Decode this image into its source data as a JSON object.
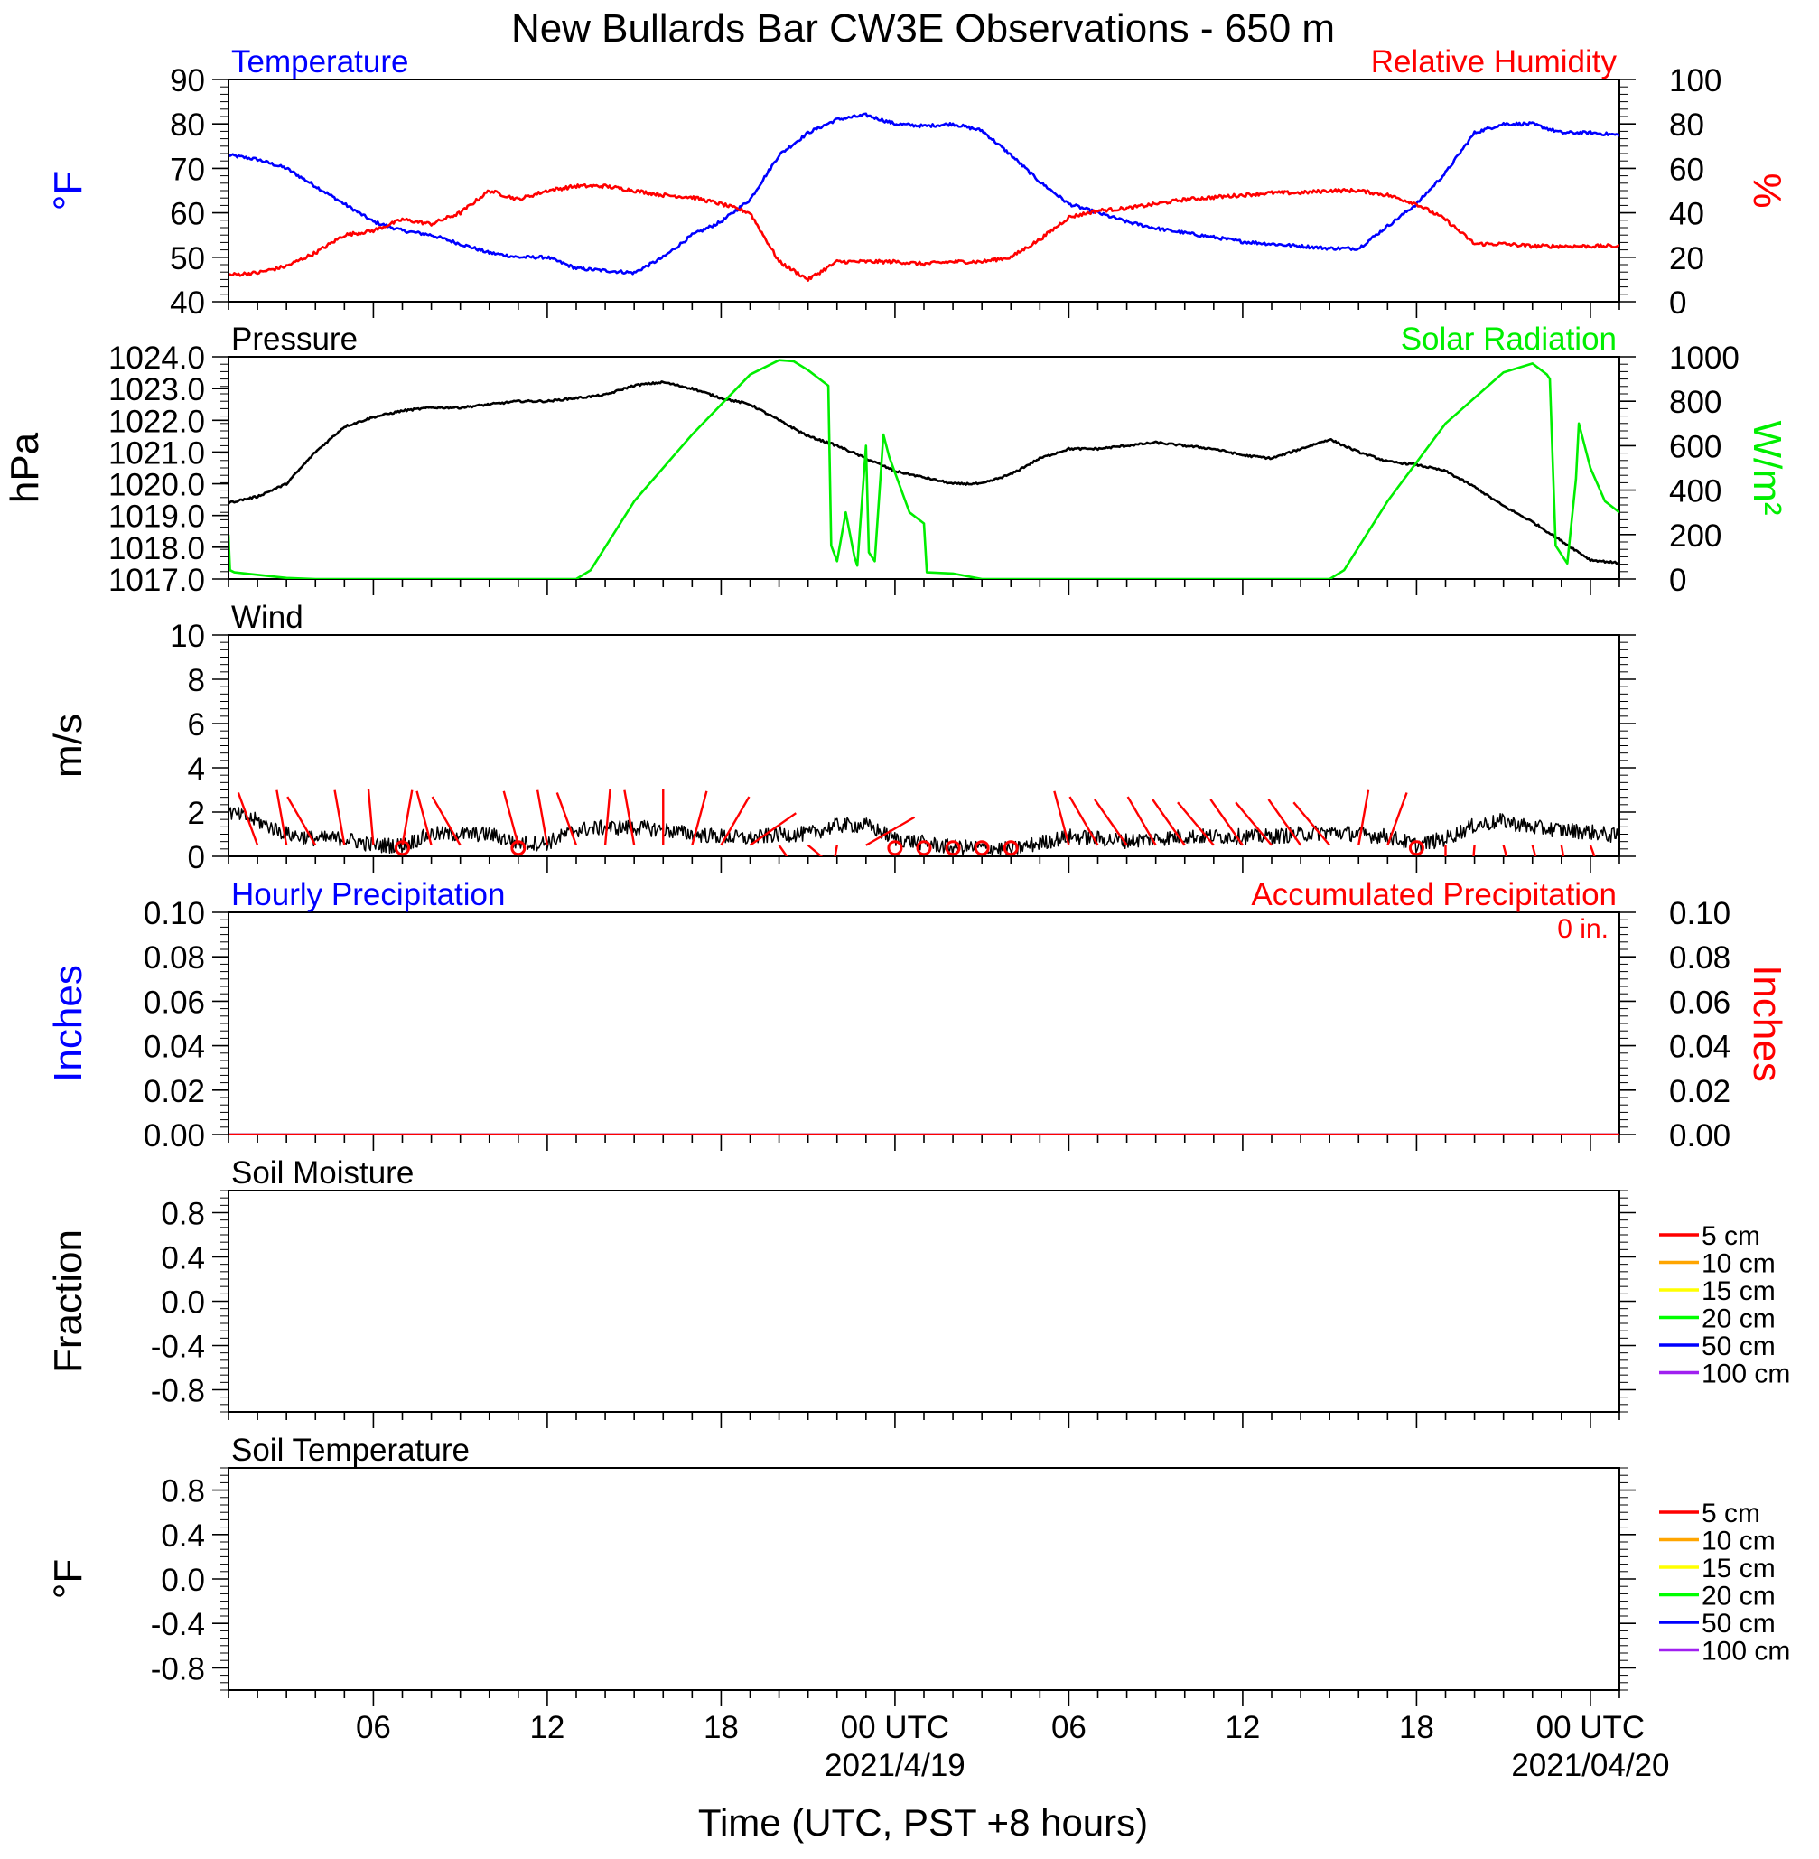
{
  "title": "New Bullards Bar CW3E Observations - 650 m",
  "x_axis": {
    "label": "Time (UTC, PST +8 hours)",
    "range_hours": [
      0,
      48
    ],
    "ticks": [
      {
        "hour": 5,
        "label": "06"
      },
      {
        "hour": 11,
        "label": "12"
      },
      {
        "hour": 17,
        "label": "18"
      },
      {
        "hour": 23,
        "label": "00 UTC"
      },
      {
        "hour": 29,
        "label": "06"
      },
      {
        "hour": 35,
        "label": "12"
      },
      {
        "hour": 41,
        "label": "18"
      },
      {
        "hour": 47,
        "label": "00 UTC"
      }
    ],
    "date_labels": [
      {
        "hour": 23,
        "label": "2021/4/19"
      },
      {
        "hour": 47,
        "label": "2021/04/20"
      }
    ]
  },
  "colors": {
    "temperature": "#0000ff",
    "humidity": "#ff0000",
    "pressure": "#000000",
    "solar": "#00ee00",
    "wind": "#000000",
    "barb": "#ff0000",
    "precip_hourly": "#0000ff",
    "precip_accum": "#ff0000"
  },
  "legends": {
    "depths": [
      {
        "label": "5 cm",
        "color": "#ff0000"
      },
      {
        "label": "10 cm",
        "color": "#ffa500"
      },
      {
        "label": "15 cm",
        "color": "#ffff00"
      },
      {
        "label": "20 cm",
        "color": "#00ff00"
      },
      {
        "label": "50 cm",
        "color": "#0000ff"
      },
      {
        "label": "100 cm",
        "color": "#a020f0"
      }
    ]
  },
  "chart_data": [
    {
      "type": "line",
      "title_left": "Temperature",
      "title_right": "Relative Humidity",
      "ylabel_left": "°F",
      "ylabel_right": "%",
      "ylim_left": [
        40,
        90
      ],
      "ylim_right": [
        0,
        100
      ],
      "yticks_left": [
        "40",
        "50",
        "60",
        "70",
        "80",
        "90"
      ],
      "yticks_right": [
        "0",
        "20",
        "40",
        "60",
        "80",
        "100"
      ],
      "series": [
        {
          "name": "Temperature",
          "axis": "left",
          "x": [
            0,
            1,
            2,
            3,
            4,
            5,
            6,
            7,
            8,
            9,
            10,
            11,
            12,
            13,
            14,
            15,
            16,
            17,
            18,
            19,
            20,
            21,
            22,
            23,
            24,
            25,
            26,
            27,
            28,
            29,
            30,
            31,
            32,
            33,
            34,
            35,
            36,
            37,
            38,
            39,
            40,
            41,
            42,
            43,
            44,
            45,
            46,
            47,
            48
          ],
          "y": [
            73,
            72,
            70,
            66,
            62,
            58,
            56,
            55,
            53,
            51,
            50,
            50,
            47.5,
            47,
            46.5,
            50,
            55,
            58,
            63,
            73,
            78,
            81,
            82,
            80,
            79.5,
            80,
            78.5,
            73,
            67,
            62,
            60,
            58,
            56.5,
            55.5,
            54.5,
            53.5,
            53,
            52.5,
            52,
            52,
            57,
            62,
            69,
            78,
            80,
            80,
            78,
            78,
            77.5
          ]
        },
        {
          "name": "Relative Humidity",
          "axis": "right",
          "x": [
            0,
            1,
            2,
            3,
            4,
            5,
            6,
            7,
            8,
            9,
            10,
            11,
            12,
            13,
            14,
            15,
            16,
            17,
            18,
            19,
            20,
            21,
            22,
            23,
            24,
            25,
            26,
            27,
            28,
            29,
            30,
            31,
            32,
            33,
            34,
            35,
            36,
            37,
            38,
            39,
            40,
            41,
            42,
            43,
            44,
            45,
            46,
            47,
            48
          ],
          "y": [
            12,
            13,
            16,
            22,
            30,
            32,
            37,
            35,
            40,
            50,
            46,
            50,
            52,
            52,
            50,
            48,
            47,
            44,
            40,
            18,
            10,
            18,
            18,
            18,
            17,
            18,
            18,
            20,
            28,
            38,
            41,
            42,
            44,
            46,
            47,
            48,
            49,
            49,
            50,
            50,
            48,
            44,
            37,
            26,
            26,
            25,
            25,
            25,
            25
          ]
        }
      ]
    },
    {
      "type": "line",
      "title_left": "Pressure",
      "title_right": "Solar Radiation",
      "ylabel_left": "hPa",
      "ylabel_right": "W/m²",
      "ylim_left": [
        1017,
        1024
      ],
      "ylim_right": [
        0,
        1000
      ],
      "yticks_left": [
        "1017.0",
        "1018.0",
        "1019.0",
        "1020.0",
        "1021.0",
        "1022.0",
        "1023.0",
        "1024.0"
      ],
      "yticks_right": [
        "0",
        "200",
        "400",
        "600",
        "800",
        "1000"
      ],
      "series": [
        {
          "name": "Pressure",
          "axis": "left",
          "x": [
            0,
            1,
            2,
            3,
            4,
            5,
            6,
            7,
            8,
            9,
            10,
            11,
            12,
            13,
            14,
            15,
            16,
            17,
            18,
            19,
            20,
            21,
            22,
            23,
            24,
            25,
            26,
            27,
            28,
            29,
            30,
            31,
            32,
            33,
            34,
            35,
            36,
            37,
            38,
            39,
            40,
            41,
            42,
            43,
            44,
            45,
            46,
            47,
            48
          ],
          "y": [
            1019.4,
            1019.6,
            1020.0,
            1021.0,
            1021.8,
            1022.1,
            1022.3,
            1022.4,
            1022.4,
            1022.5,
            1022.6,
            1022.6,
            1022.7,
            1022.8,
            1023.1,
            1023.2,
            1023.0,
            1022.7,
            1022.5,
            1022.0,
            1021.5,
            1021.2,
            1020.8,
            1020.4,
            1020.2,
            1020.0,
            1020.0,
            1020.3,
            1020.8,
            1021.1,
            1021.1,
            1021.2,
            1021.3,
            1021.2,
            1021.1,
            1020.9,
            1020.8,
            1021.1,
            1021.4,
            1021.0,
            1020.7,
            1020.6,
            1020.4,
            1019.9,
            1019.3,
            1018.8,
            1018.2,
            1017.6,
            1017.5
          ]
        },
        {
          "name": "Solar Radiation",
          "axis": "right",
          "x": [
            0,
            0.05,
            0.2,
            2,
            3,
            12,
            12.5,
            14,
            16,
            18,
            19,
            19.5,
            20,
            20.7,
            20.8,
            21,
            21.3,
            21.6,
            21.7,
            22,
            22.1,
            22.3,
            22.6,
            22.8,
            23.5,
            24,
            24.1,
            25,
            26,
            38,
            38.5,
            40,
            42,
            44,
            45,
            45.5,
            45.6,
            45.8,
            46.2,
            46.5,
            46.6,
            47,
            47.5,
            48
          ],
          "y": [
            200,
            40,
            30,
            5,
            0,
            0,
            40,
            350,
            650,
            920,
            985,
            980,
            940,
            870,
            150,
            80,
            300,
            100,
            60,
            600,
            120,
            80,
            650,
            550,
            300,
            250,
            30,
            25,
            0,
            0,
            40,
            350,
            700,
            930,
            970,
            920,
            900,
            150,
            70,
            450,
            700,
            500,
            350,
            300
          ]
        }
      ]
    },
    {
      "type": "line",
      "title_left": "Wind",
      "ylabel_left": "m/s",
      "ylim_left": [
        0,
        10
      ],
      "yticks_left": [
        "0",
        "2",
        "4",
        "6",
        "8",
        "10"
      ],
      "series": [
        {
          "name": "Wind speed",
          "axis": "left",
          "x": [
            0,
            1,
            2,
            3,
            4,
            5,
            6,
            7,
            8,
            9,
            10,
            11,
            12,
            13,
            14,
            15,
            16,
            17,
            18,
            19,
            20,
            21,
            22,
            23,
            24,
            25,
            26,
            27,
            28,
            29,
            30,
            31,
            32,
            33,
            34,
            35,
            36,
            37,
            38,
            39,
            40,
            41,
            42,
            43,
            44,
            45,
            46,
            47,
            48
          ],
          "y": [
            2.0,
            1.6,
            1.0,
            0.8,
            0.8,
            0.5,
            0.5,
            1.0,
            1.0,
            1.0,
            0.6,
            0.6,
            1.2,
            1.3,
            1.3,
            1.2,
            1.0,
            0.9,
            0.8,
            1.0,
            1.0,
            1.4,
            1.4,
            0.8,
            0.6,
            0.4,
            0.4,
            0.3,
            0.6,
            0.9,
            0.8,
            0.7,
            0.8,
            0.9,
            0.9,
            0.9,
            0.9,
            1.0,
            1.1,
            1.0,
            0.9,
            0.5,
            0.8,
            1.4,
            1.6,
            1.3,
            1.2,
            1.1,
            0.9
          ]
        }
      ],
      "wind_barbs": {
        "x": [
          1,
          2,
          3,
          4,
          5,
          6,
          7,
          8,
          9,
          10,
          11,
          12,
          13,
          14,
          15,
          16,
          17,
          18,
          19,
          20,
          21,
          22,
          23,
          24,
          25,
          26,
          27,
          28,
          29,
          30,
          31,
          32,
          33,
          34,
          35,
          36,
          37,
          38,
          39,
          40,
          41,
          42,
          43,
          44,
          45,
          46,
          47
        ],
        "direction_deg": [
          340,
          350,
          330,
          350,
          355,
          10,
          345,
          330,
          999,
          345,
          350,
          340,
          5,
          350,
          0,
          15,
          30,
          55,
          145,
          130,
          190,
          60,
          999,
          999,
          999,
          999,
          999,
          999,
          345,
          330,
          325,
          330,
          325,
          320,
          325,
          320,
          325,
          320,
          10,
          20,
          999,
          180,
          185,
          165,
          165,
          170,
          160
        ],
        "calm_marker_hours": [
          6,
          10,
          23,
          24,
          25,
          26,
          27,
          41
        ]
      }
    },
    {
      "type": "line",
      "title_left": "Hourly Precipitation",
      "title_right": "Accumulated Precipitation",
      "annotation": "0 in.",
      "ylabel_left": "Inches",
      "ylabel_right": "Inches",
      "ylim_left": [
        0,
        0.1
      ],
      "ylim_right": [
        0,
        0.1
      ],
      "yticks_left": [
        "0.00",
        "0.02",
        "0.04",
        "0.06",
        "0.08",
        "0.10"
      ],
      "yticks_right": [
        "0.00",
        "0.02",
        "0.04",
        "0.06",
        "0.08",
        "0.10"
      ],
      "series": [
        {
          "name": "Hourly Precipitation",
          "axis": "left",
          "x": [
            0,
            48
          ],
          "y": [
            0,
            0
          ]
        },
        {
          "name": "Accumulated Precipitation",
          "axis": "right",
          "x": [
            0,
            48
          ],
          "y": [
            0,
            0
          ]
        }
      ]
    },
    {
      "type": "line",
      "title_left": "Soil Moisture",
      "ylabel_left": "Fraction",
      "ylim_left": [
        -1,
        1
      ],
      "yticks_left": [
        "-0.8",
        "-0.4",
        "0.0",
        "0.4",
        "0.8"
      ],
      "series": []
    },
    {
      "type": "line",
      "title_left": "Soil Temperature",
      "ylabel_left": "°F",
      "ylim_left": [
        -1,
        1
      ],
      "yticks_left": [
        "-0.8",
        "-0.4",
        "0.0",
        "0.4",
        "0.8"
      ],
      "series": []
    }
  ]
}
